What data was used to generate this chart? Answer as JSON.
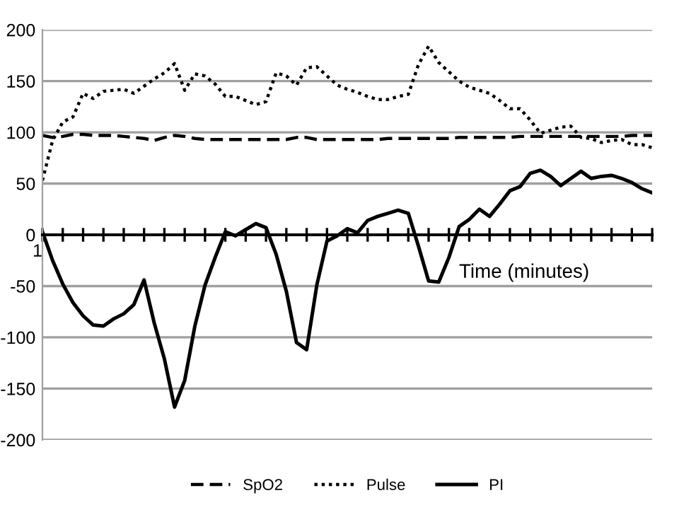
{
  "chart_data": {
    "type": "line",
    "xlabel": "Time (minutes)",
    "categories": [
      "1",
      null,
      null,
      null,
      null,
      null,
      null,
      null,
      null,
      null,
      null,
      null,
      null,
      null,
      null,
      null,
      null,
      null,
      null,
      null,
      null,
      null,
      null,
      null,
      null,
      null,
      null,
      null,
      null,
      null,
      null,
      null,
      null,
      null,
      null,
      null,
      null,
      null,
      null,
      null,
      null,
      null,
      null,
      null,
      null,
      null,
      null,
      null,
      null,
      null,
      null,
      null,
      null,
      null,
      null,
      null,
      null,
      null,
      null,
      null,
      null
    ],
    "ylim": [
      -200,
      200
    ],
    "yticks": [
      -200,
      -150,
      -100,
      -50,
      0,
      50,
      100,
      150,
      200
    ],
    "grid": "y",
    "legend": "bottom",
    "marker": "none",
    "series": [
      {
        "name": "SpO2",
        "color": "#000000",
        "line_style": "dashed",
        "values": [
          97,
          95,
          96,
          98,
          98,
          97,
          97,
          97,
          96,
          95,
          94,
          92,
          95,
          97,
          96,
          94,
          93,
          93,
          93,
          93,
          93,
          93,
          93,
          93,
          93,
          95,
          95,
          93,
          93,
          93,
          93,
          93,
          93,
          93,
          94,
          94,
          94,
          94,
          94,
          94,
          94,
          95,
          95,
          95,
          95,
          95,
          95,
          96,
          96,
          96,
          96,
          96,
          96,
          96,
          96,
          96,
          96,
          96,
          97,
          97,
          97
        ]
      },
      {
        "name": "Pulse",
        "color": "#000000",
        "line_style": "dotted",
        "values": [
          53,
          92,
          110,
          115,
          138,
          133,
          140,
          141,
          142,
          138,
          145,
          152,
          158,
          167,
          141,
          157,
          155,
          147,
          135,
          135,
          131,
          127,
          130,
          158,
          155,
          146,
          163,
          164,
          155,
          146,
          142,
          139,
          135,
          132,
          132,
          135,
          137,
          166,
          184,
          168,
          159,
          150,
          144,
          141,
          138,
          131,
          123,
          123,
          112,
          99,
          102,
          105,
          106,
          95,
          94,
          90,
          92,
          93,
          88,
          88,
          85
        ]
      },
      {
        "name": "PI",
        "color": "#000000",
        "line_style": "solid",
        "values": [
          3,
          -25,
          -48,
          -66,
          -79,
          -88,
          -89,
          -82,
          -77,
          -68,
          -44,
          -86,
          -121,
          -168,
          -142,
          -89,
          -49,
          -22,
          3,
          -1,
          5,
          11,
          7,
          -19,
          -55,
          -105,
          -112,
          -49,
          -6,
          -1,
          6,
          2,
          14,
          18,
          21,
          24,
          21,
          -11,
          -45,
          -46,
          -22,
          8,
          15,
          25,
          18,
          30,
          43,
          47,
          60,
          63,
          57,
          48,
          55,
          62,
          55,
          57,
          58,
          55,
          51,
          45,
          41
        ]
      }
    ]
  }
}
